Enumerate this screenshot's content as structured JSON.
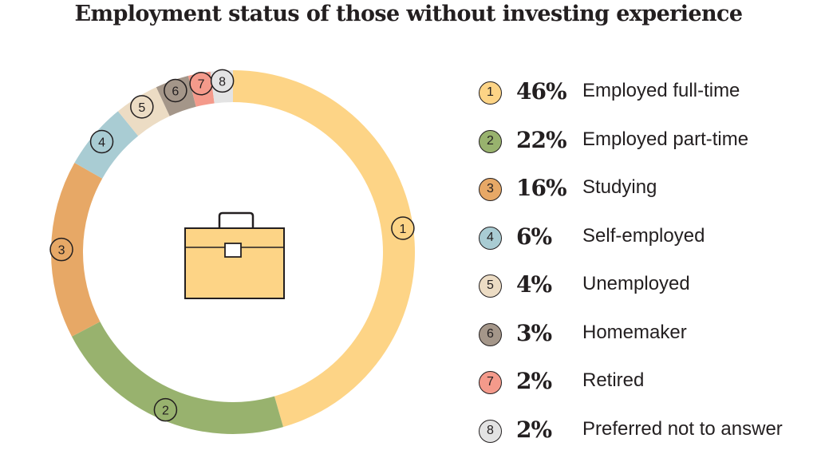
{
  "chart_data": {
    "type": "pie",
    "title": "Employment status of those without investing experience",
    "categories": [
      "Employed full-time",
      "Employed part-time",
      "Studying",
      "Self-employed",
      "Unemployed",
      "Homemaker",
      "Retired",
      "Preferred not to answer"
    ],
    "values": [
      46,
      22,
      16,
      6,
      4,
      3,
      2,
      2
    ],
    "value_labels": [
      "46%",
      "22%",
      "16%",
      "6%",
      "4%",
      "3%",
      "2%",
      "2%"
    ],
    "slice_numbers": [
      "1",
      "2",
      "3",
      "4",
      "5",
      "6",
      "7",
      "8"
    ],
    "colors": [
      "#fdd486",
      "#98b26e",
      "#e7a866",
      "#a9ccd3",
      "#ecdcc4",
      "#a49689",
      "#f49a8b",
      "#e3e3e3"
    ],
    "legend_position": "right",
    "center_icon": "briefcase-icon"
  }
}
